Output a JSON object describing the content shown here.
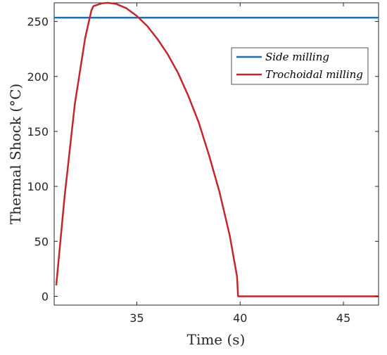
{
  "chart_data": {
    "type": "line",
    "title": "",
    "xlabel": "Time (s)",
    "ylabel": "Thermal Shock (°C)",
    "xlim": [
      31,
      46.7
    ],
    "ylim": [
      -8,
      267
    ],
    "xticks": [
      35,
      40,
      45
    ],
    "yticks": [
      0,
      50,
      100,
      150,
      200,
      250
    ],
    "grid": false,
    "legend_position": "top-right",
    "series": [
      {
        "name": "Side milling",
        "color": "#1f6f9f",
        "x": [
          31,
          46.7
        ],
        "y": [
          253.5,
          253.5
        ]
      },
      {
        "name": "Trochoidal milling",
        "color": "#c1272d",
        "x": [
          31.1,
          31.5,
          32.0,
          32.5,
          32.8,
          32.9,
          33.3,
          33.6,
          34.0,
          34.5,
          35.0,
          35.5,
          36.0,
          36.5,
          37.0,
          37.5,
          38.0,
          38.5,
          39.0,
          39.5,
          39.85,
          39.9,
          41.0,
          43.0,
          45.0,
          46.7
        ],
        "y": [
          10,
          90,
          175,
          235,
          260,
          264,
          266.5,
          267,
          266,
          262,
          255,
          246,
          234,
          220,
          203,
          182,
          158,
          128,
          95,
          55,
          18,
          0,
          0,
          0,
          0,
          0
        ]
      }
    ]
  }
}
